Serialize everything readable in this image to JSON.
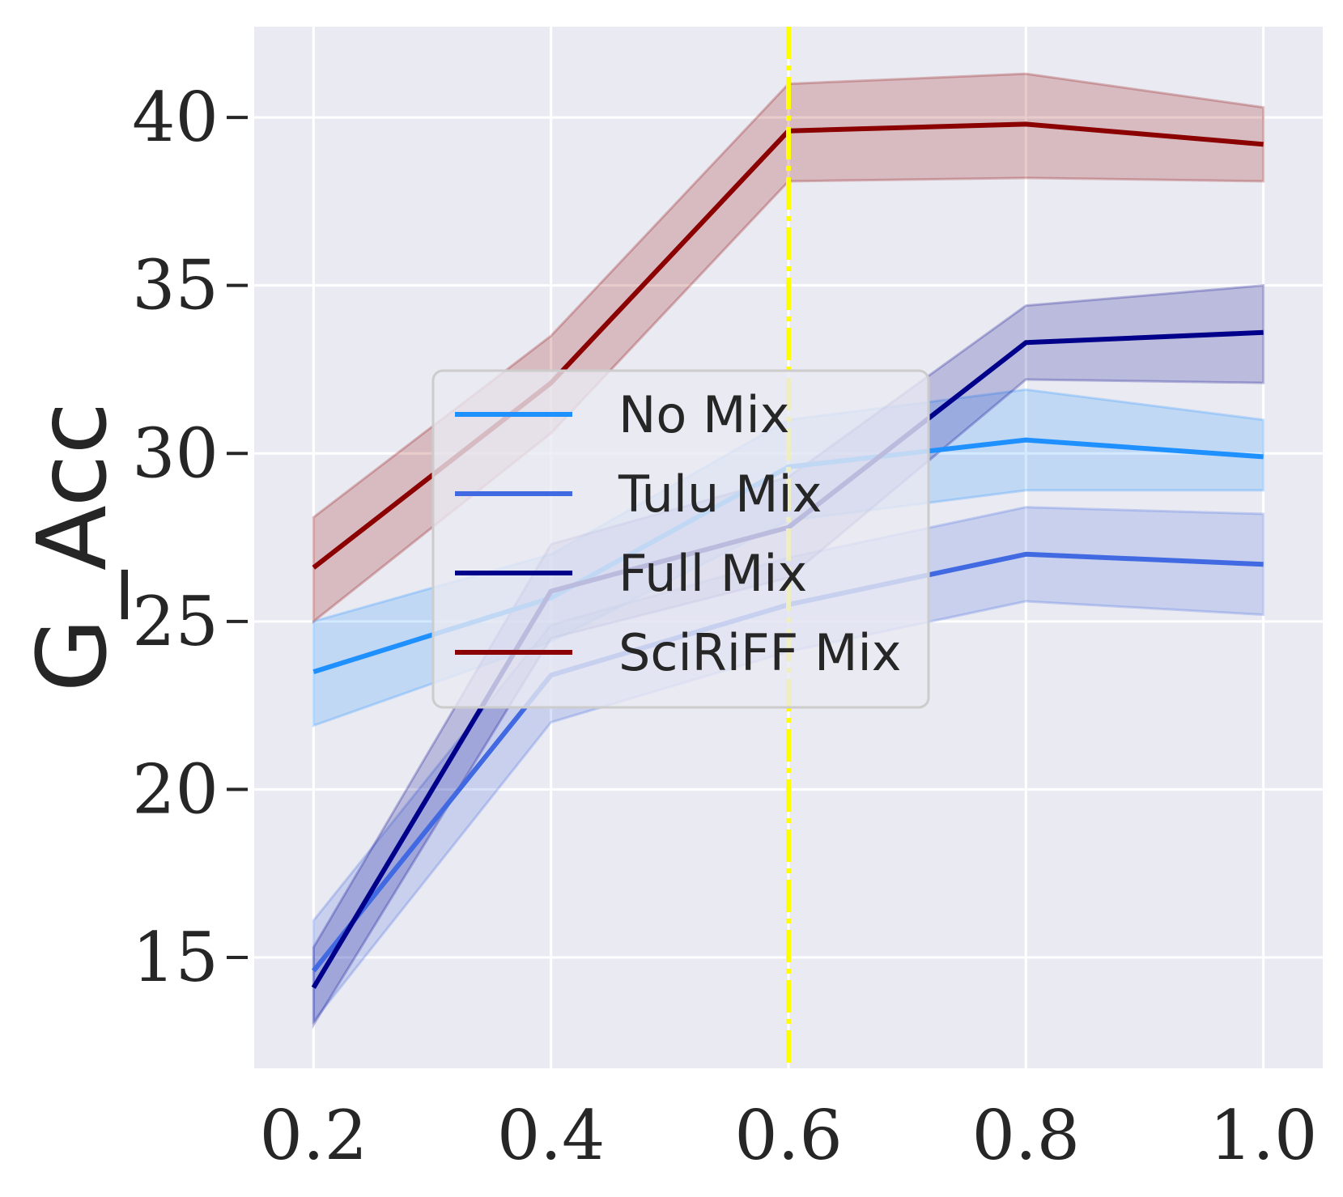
{
  "chart_data": {
    "type": "line",
    "title": "",
    "xlabel": "",
    "ylabel": "G_Acc",
    "xlim": [
      0.15,
      1.05
    ],
    "ylim": [
      11.7,
      42.7
    ],
    "grid": true,
    "legend_position": "center",
    "x_ticks": [
      "0.2",
      "0.4",
      "0.6",
      "0.8",
      "1.0"
    ],
    "y_ticks": [
      "15",
      "20",
      "25",
      "30",
      "35",
      "40"
    ],
    "x": [
      0.2,
      0.4,
      0.6,
      0.8,
      1.0
    ],
    "vline": {
      "x": 0.6,
      "color": "#ffff00",
      "style": "dashdot"
    },
    "series": [
      {
        "name": "No Mix",
        "color": "#1e90ff",
        "values": [
          23.5,
          25.7,
          29.6,
          30.4,
          29.9
        ],
        "lower": [
          21.9,
          24.4,
          28.0,
          28.9,
          28.9
        ],
        "upper": [
          25.0,
          27.0,
          31.0,
          31.9,
          31.0
        ]
      },
      {
        "name": "Tulu Mix",
        "color": "#4169e1",
        "values": [
          14.6,
          23.4,
          25.5,
          27.0,
          26.7
        ],
        "lower": [
          13.1,
          22.0,
          24.1,
          25.6,
          25.2
        ],
        "upper": [
          16.1,
          24.9,
          26.9,
          28.4,
          28.2
        ]
      },
      {
        "name": "Full Mix",
        "color": "#00008b",
        "values": [
          14.1,
          25.9,
          27.8,
          33.3,
          33.6
        ],
        "lower": [
          13.0,
          24.5,
          26.3,
          32.2,
          32.1
        ],
        "upper": [
          15.3,
          27.3,
          29.3,
          34.4,
          35.0
        ]
      },
      {
        "name": "SciRiFF Mix",
        "color": "#8b0000",
        "values": [
          26.6,
          32.1,
          39.6,
          39.8,
          39.2
        ],
        "lower": [
          25.0,
          30.6,
          38.1,
          38.2,
          38.1
        ],
        "upper": [
          28.1,
          33.5,
          41.0,
          41.3,
          40.3
        ]
      }
    ]
  }
}
